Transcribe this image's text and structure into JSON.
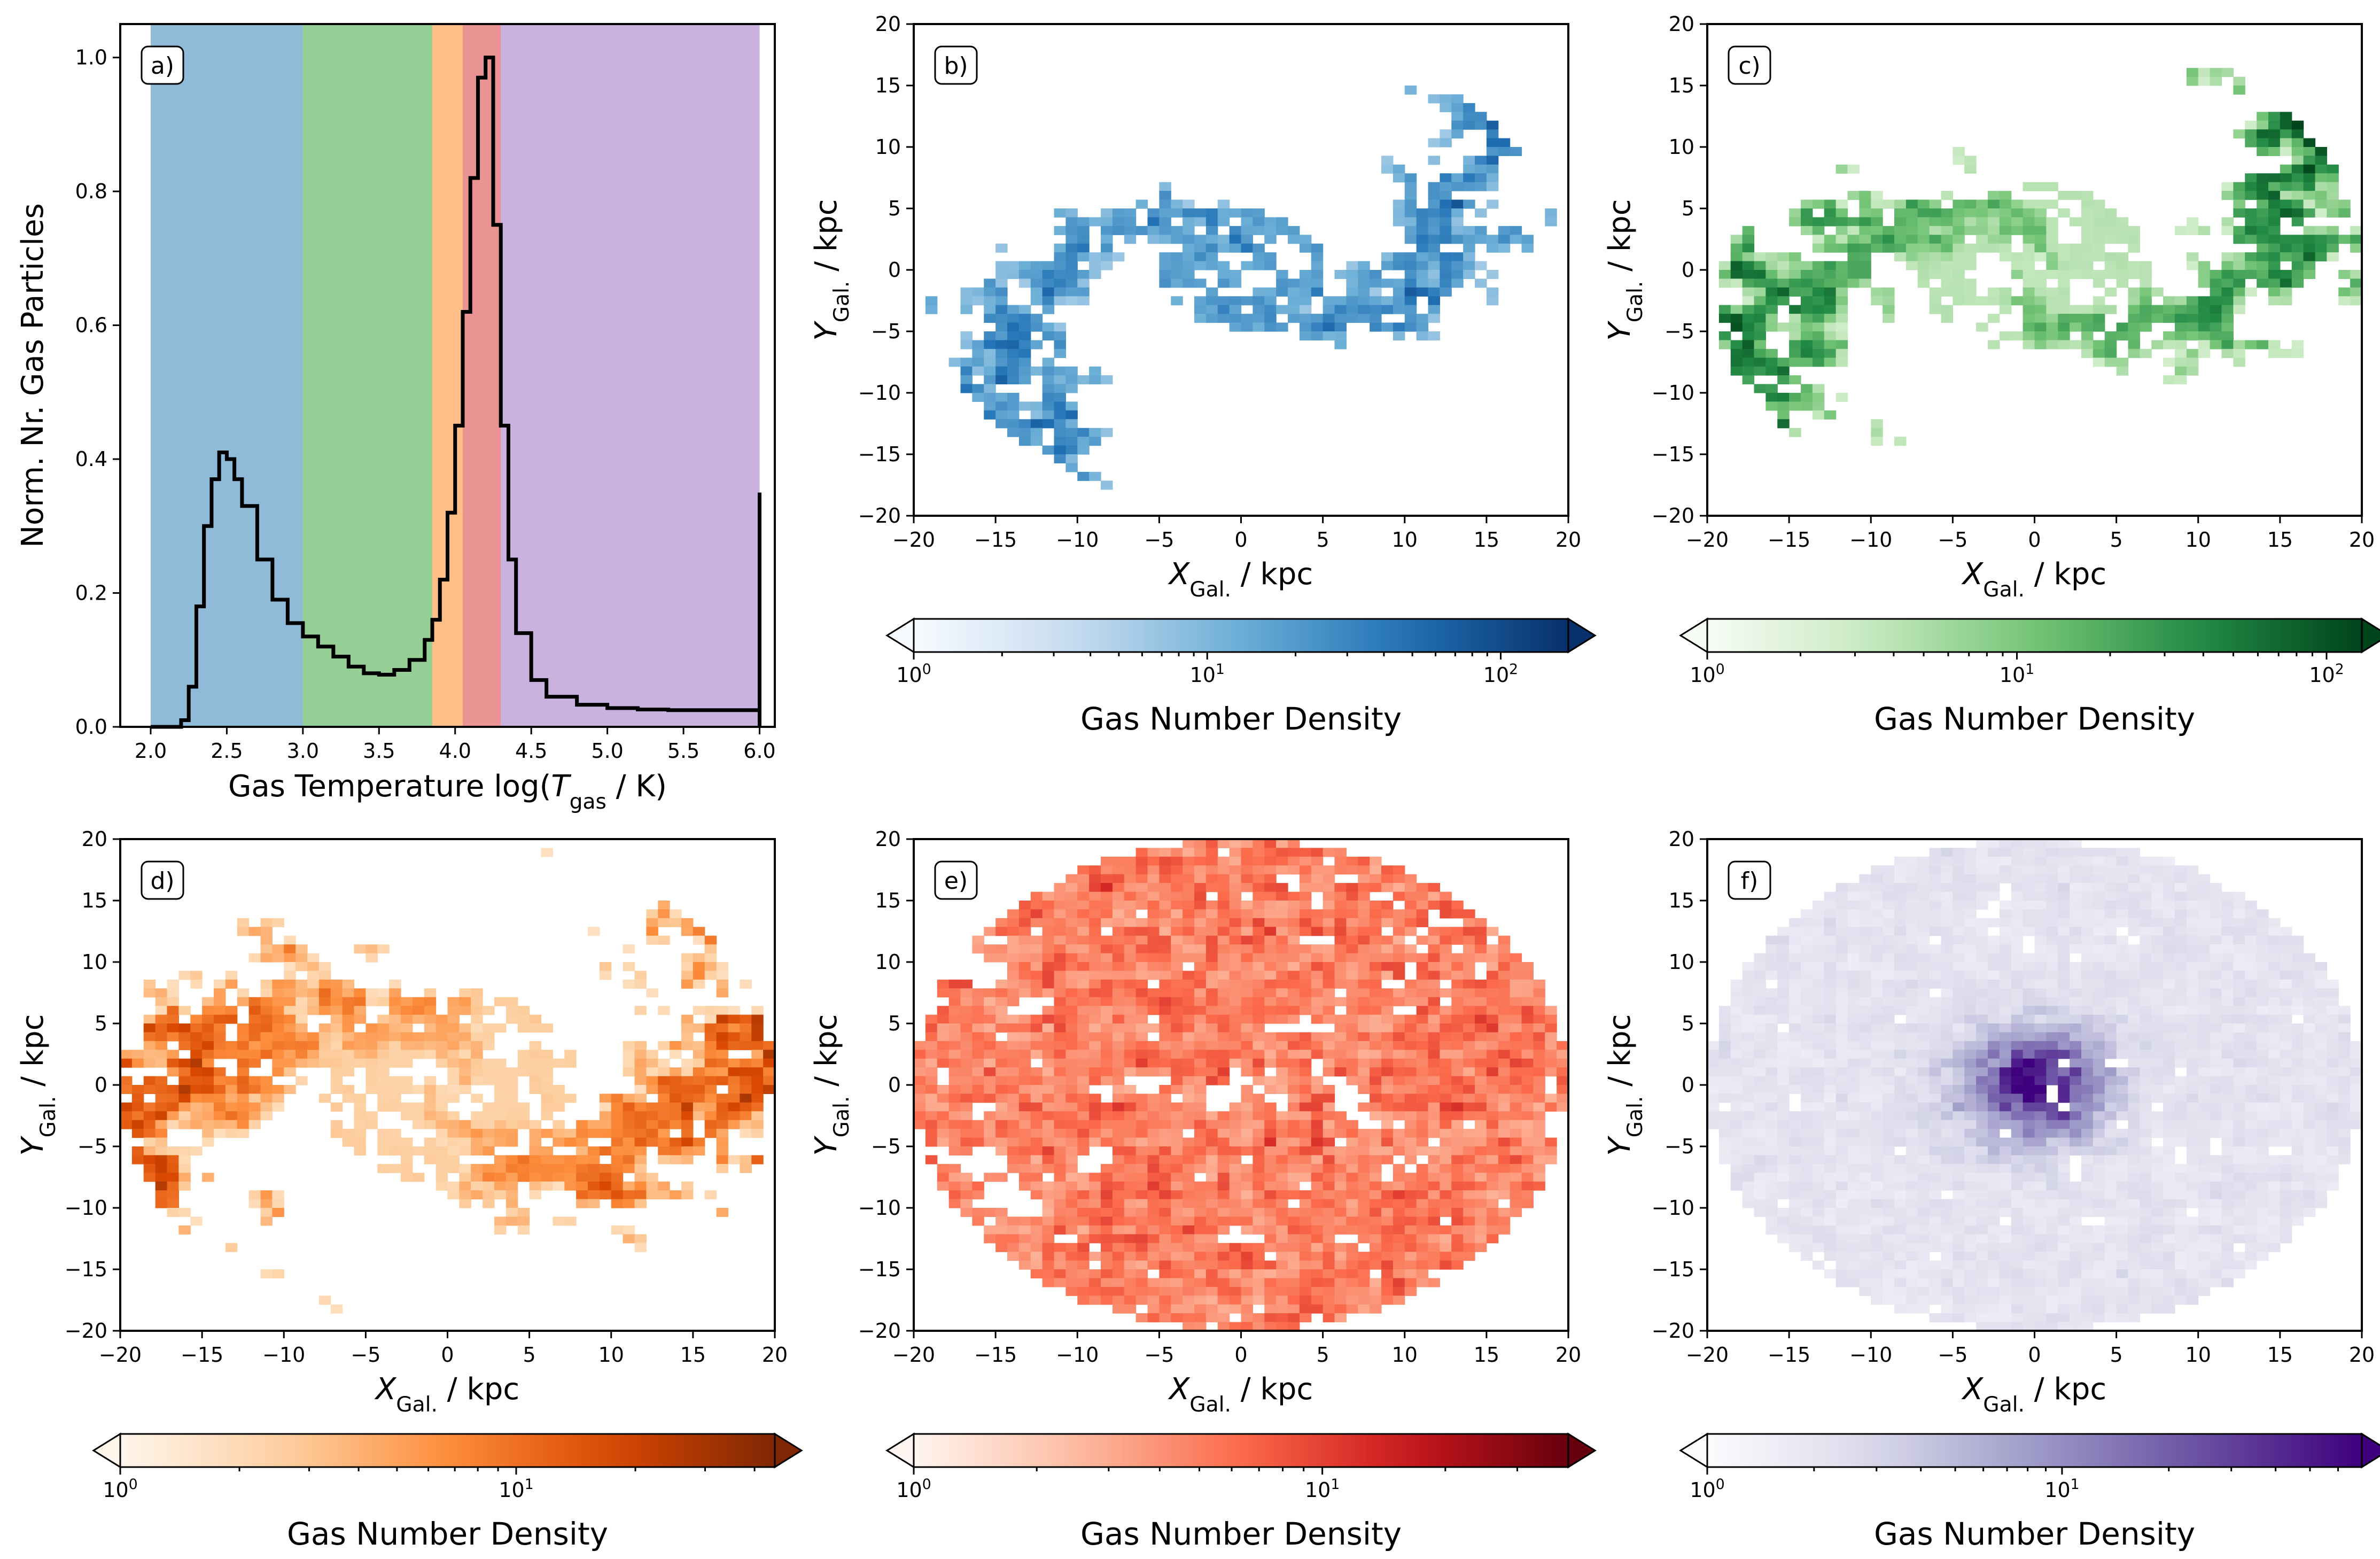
{
  "figure": {
    "colors": {
      "blue": "#1f77b4",
      "green": "#2ca02c",
      "orange": "#ff7f0e",
      "red": "#d62728",
      "purple": "#9467bd",
      "hist_line": "#000000"
    }
  },
  "chart_data": [
    {
      "id": "a",
      "type": "line",
      "panel_label": "a)",
      "xlabel_prefix": "Gas Temperature log(",
      "xlabel_var": "T",
      "xlabel_sub": "gas",
      "xlabel_suffix": " / K)",
      "ylabel": "Norm. Nr. Gas Particles",
      "xlim": [
        1.8,
        6.1
      ],
      "ylim": [
        0.0,
        1.05
      ],
      "xticks": [
        "2.0",
        "2.5",
        "3.0",
        "3.5",
        "4.0",
        "4.5",
        "5.0",
        "5.5",
        "6.0"
      ],
      "yticks": [
        "0.0",
        "0.2",
        "0.4",
        "0.6",
        "0.8",
        "1.0"
      ],
      "bands": [
        {
          "from": 2.0,
          "to": 3.0,
          "color": "blue"
        },
        {
          "from": 3.0,
          "to": 3.85,
          "color": "green"
        },
        {
          "from": 3.85,
          "to": 4.05,
          "color": "orange"
        },
        {
          "from": 4.05,
          "to": 4.3,
          "color": "red"
        },
        {
          "from": 4.3,
          "to": 6.0,
          "color": "purple"
        }
      ],
      "x": [
        2.0,
        2.1,
        2.2,
        2.25,
        2.3,
        2.35,
        2.4,
        2.45,
        2.5,
        2.55,
        2.6,
        2.7,
        2.8,
        2.9,
        3.0,
        3.1,
        3.2,
        3.3,
        3.4,
        3.5,
        3.6,
        3.7,
        3.8,
        3.85,
        3.9,
        3.95,
        4.0,
        4.05,
        4.1,
        4.15,
        4.2,
        4.25,
        4.3,
        4.35,
        4.4,
        4.5,
        4.6,
        4.8,
        5.0,
        5.2,
        5.4,
        5.6,
        5.8,
        5.95,
        6.0
      ],
      "y": [
        0.0,
        0.0,
        0.01,
        0.06,
        0.18,
        0.3,
        0.37,
        0.41,
        0.4,
        0.37,
        0.33,
        0.25,
        0.19,
        0.155,
        0.135,
        0.12,
        0.105,
        0.09,
        0.08,
        0.078,
        0.085,
        0.1,
        0.13,
        0.16,
        0.22,
        0.32,
        0.45,
        0.62,
        0.82,
        0.97,
        1.0,
        0.75,
        0.45,
        0.25,
        0.14,
        0.07,
        0.045,
        0.033,
        0.028,
        0.026,
        0.025,
        0.025,
        0.025,
        0.025,
        0.35
      ]
    },
    {
      "id": "b",
      "type": "heatmap",
      "panel_label": "b)",
      "cmap": "blue",
      "morph": "spiral",
      "xlabel_var": "X",
      "ylabel_var": "Y",
      "sub": "Gal.",
      "unit": " / kpc",
      "xlim": [
        -20,
        20
      ],
      "ylim": [
        -20,
        20
      ],
      "xticks": [
        "−20",
        "−15",
        "−10",
        "−5",
        "0",
        "5",
        "10",
        "15",
        "20"
      ],
      "yticks": [
        "−20",
        "−15",
        "−10",
        "−5",
        "0",
        "5",
        "10",
        "15",
        "20"
      ],
      "colorbar": {
        "label": "Gas Number Density",
        "scale": "log",
        "min": 1,
        "max": 170,
        "tick_base": "10",
        "tick_exps": [
          "0",
          "1",
          "2"
        ],
        "tick_values": [
          1,
          10,
          100
        ]
      }
    },
    {
      "id": "c",
      "type": "heatmap",
      "panel_label": "c)",
      "cmap": "green",
      "morph": "spiral_wide",
      "xlabel_var": "X",
      "ylabel_var": "Y",
      "sub": "Gal.",
      "unit": " / kpc",
      "xlim": [
        -20,
        20
      ],
      "ylim": [
        -20,
        20
      ],
      "xticks": [
        "−20",
        "−15",
        "−10",
        "−5",
        "0",
        "5",
        "10",
        "15",
        "20"
      ],
      "yticks": [
        "−20",
        "−15",
        "−10",
        "−5",
        "0",
        "5",
        "10",
        "15",
        "20"
      ],
      "colorbar": {
        "label": "Gas Number Density",
        "scale": "log",
        "min": 1,
        "max": 130,
        "tick_base": "10",
        "tick_exps": [
          "0",
          "1",
          "2"
        ],
        "tick_values": [
          1,
          10,
          100
        ]
      }
    },
    {
      "id": "d",
      "type": "heatmap",
      "panel_label": "d)",
      "cmap": "orange",
      "morph": "filament",
      "xlabel_var": "X",
      "ylabel_var": "Y",
      "sub": "Gal.",
      "unit": " / kpc",
      "xlim": [
        -20,
        20
      ],
      "ylim": [
        -20,
        20
      ],
      "xticks": [
        "−20",
        "−15",
        "−10",
        "−5",
        "0",
        "5",
        "10",
        "15",
        "20"
      ],
      "yticks": [
        "−20",
        "−15",
        "−10",
        "−5",
        "0",
        "5",
        "10",
        "15",
        "20"
      ],
      "colorbar": {
        "label": "Gas Number Density",
        "scale": "log",
        "min": 1,
        "max": 45,
        "tick_base": "10",
        "tick_exps": [
          "0",
          "1"
        ],
        "tick_values": [
          1,
          10
        ]
      }
    },
    {
      "id": "e",
      "type": "heatmap",
      "panel_label": "e)",
      "cmap": "red",
      "morph": "disk_holes",
      "xlabel_var": "X",
      "ylabel_var": "Y",
      "sub": "Gal.",
      "unit": " / kpc",
      "xlim": [
        -20,
        20
      ],
      "ylim": [
        -20,
        20
      ],
      "xticks": [
        "−20",
        "−15",
        "−10",
        "−5",
        "0",
        "5",
        "10",
        "15",
        "20"
      ],
      "yticks": [
        "−20",
        "−15",
        "−10",
        "−5",
        "0",
        "5",
        "10",
        "15",
        "20"
      ],
      "colorbar": {
        "label": "Gas Number Density",
        "scale": "log",
        "min": 1,
        "max": 40,
        "tick_base": "10",
        "tick_exps": [
          "0",
          "1"
        ],
        "tick_values": [
          1,
          10
        ]
      }
    },
    {
      "id": "f",
      "type": "heatmap",
      "panel_label": "f)",
      "cmap": "purple",
      "morph": "diffuse",
      "xlabel_var": "X",
      "ylabel_var": "Y",
      "sub": "Gal.",
      "unit": " / kpc",
      "xlim": [
        -20,
        20
      ],
      "ylim": [
        -20,
        20
      ],
      "xticks": [
        "−20",
        "−15",
        "−10",
        "−5",
        "0",
        "5",
        "10",
        "15",
        "20"
      ],
      "yticks": [
        "−20",
        "−15",
        "−10",
        "−5",
        "0",
        "5",
        "10",
        "15",
        "20"
      ],
      "colorbar": {
        "label": "Gas Number Density",
        "scale": "log",
        "min": 1,
        "max": 70,
        "tick_base": "10",
        "tick_exps": [
          "0",
          "1"
        ],
        "tick_values": [
          1,
          10
        ]
      }
    }
  ]
}
